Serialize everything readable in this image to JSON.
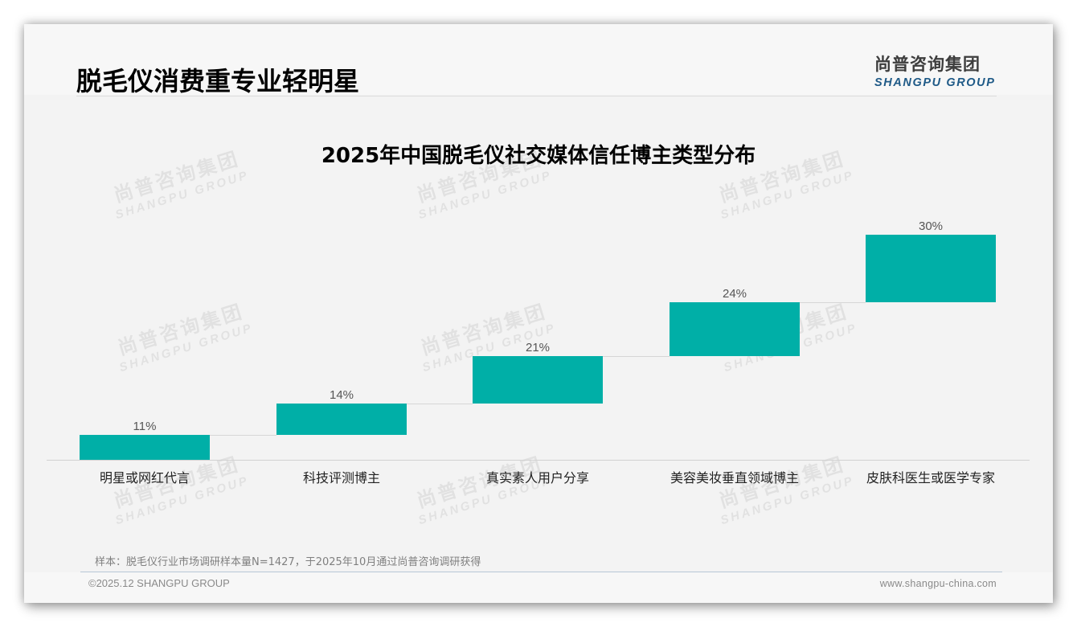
{
  "page": {
    "title": "脱毛仪消费重专业轻明星",
    "logo": {
      "cn": "尚普咨询集团",
      "en": "SHANGPU GROUP"
    },
    "watermark": {
      "cn": "尚普咨询集团",
      "en": "SHANGPU GROUP"
    }
  },
  "colors": {
    "bar": "#00afa7",
    "title": "#000000",
    "logo_en": "#1f5a87"
  },
  "chart_data": {
    "type": "bar",
    "subtype": "waterfall",
    "title": "2025年中国脱毛仪社交媒体信任博主类型分布",
    "xlabel": "",
    "ylabel": "",
    "categories": [
      "明星或网红代言",
      "科技评测博主",
      "真实素人用户分享",
      "美容美妆垂直领域博主",
      "皮肤科医生或医学专家"
    ],
    "values": [
      11,
      14,
      21,
      24,
      30
    ],
    "labels": [
      "11%",
      "14%",
      "21%",
      "24%",
      "30%"
    ],
    "unit": "%",
    "ylim": [
      0,
      100
    ],
    "grid": false,
    "legend": null
  },
  "footer": {
    "note": "样本：脱毛仪行业市场调研样本量N=1427，于2025年10月通过尚普咨询调研获得",
    "copyright": "©2025.12 SHANGPU GROUP",
    "website": "www.shangpu-china.com"
  }
}
